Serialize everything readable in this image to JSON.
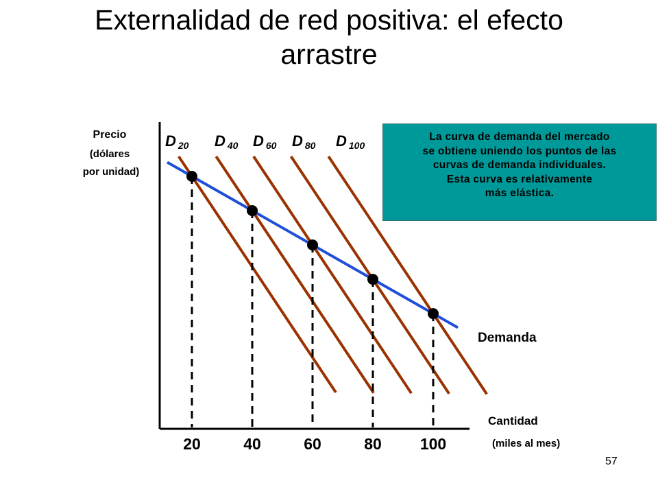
{
  "slide": {
    "title_line1": "Externalidad de red positiva: el efecto",
    "title_line2": "arrastre",
    "page_number": "57"
  },
  "note": {
    "lines": [
      "La curva de demanda del mercado",
      "se obtiene uniendo los puntos de las",
      "curvas de demanda individuales.",
      "Esta curva es relativamente",
      "más elástica."
    ],
    "background_color": "#009999"
  },
  "chart_data": {
    "type": "line",
    "title": "Externalidad de red positiva: el efecto arrastre",
    "ylabel_lines": [
      "Precio",
      "(dólares",
      "por unidad)"
    ],
    "xlabel": "Cantidad",
    "xlabel_unit": "(miles al mes)",
    "x_ticks": [
      "20",
      "40",
      "60",
      "80",
      "100"
    ],
    "x": [
      20,
      40,
      60,
      80,
      100
    ],
    "grid": false,
    "individual_curves": [
      {
        "label": "D",
        "subscript": "20",
        "color": "#993300"
      },
      {
        "label": "D",
        "subscript": "40",
        "color": "#993300"
      },
      {
        "label": "D",
        "subscript": "60",
        "color": "#993300"
      },
      {
        "label": "D",
        "subscript": "80",
        "color": "#993300"
      },
      {
        "label": "D",
        "subscript": "100",
        "color": "#993300"
      }
    ],
    "market_demand": {
      "name": "Demanda",
      "color": "#1f4fd8",
      "points_x": [
        20,
        40,
        60,
        80,
        100
      ]
    },
    "dashed_guides": true
  }
}
